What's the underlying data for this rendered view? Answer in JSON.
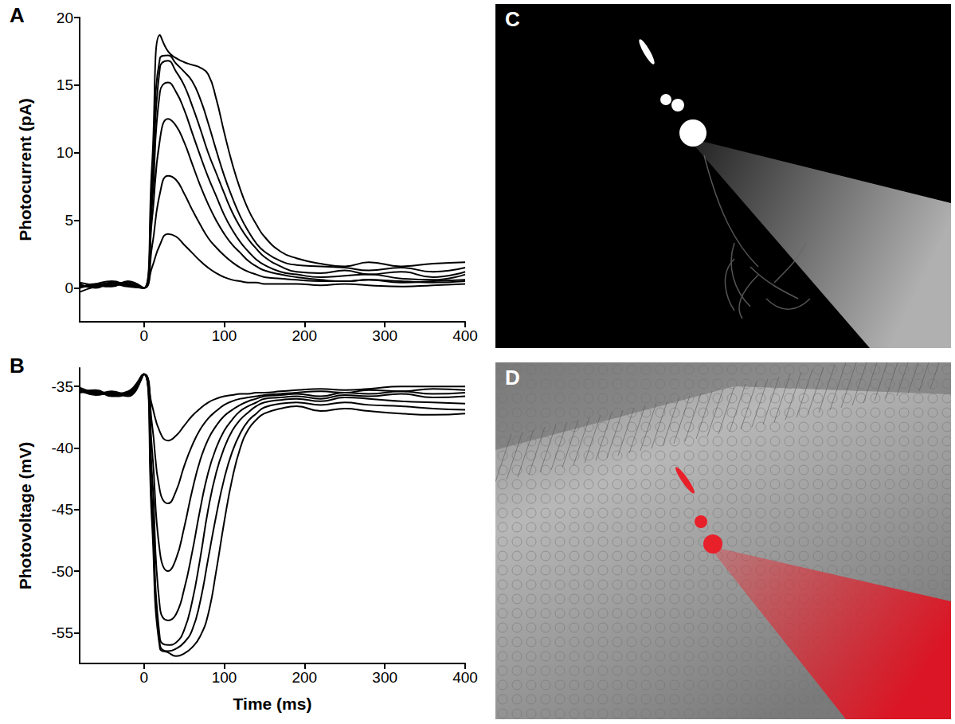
{
  "chart_data": [
    {
      "panel": "A",
      "type": "line",
      "ylabel": "Photocurrent (pA)",
      "color": "#000000",
      "marker": "none",
      "line_style": "solid",
      "grid": false,
      "xlim": [
        -80,
        400
      ],
      "xticks": [
        0,
        100,
        200,
        300,
        400
      ],
      "ylim": [
        -2.5,
        20
      ],
      "yticks": [
        0,
        5,
        10,
        15,
        20
      ],
      "x": [
        -80,
        -60,
        -40,
        -20,
        0,
        10,
        20,
        30,
        40,
        50,
        60,
        70,
        80,
        90,
        100,
        110,
        120,
        130,
        140,
        150,
        170,
        190,
        220,
        250,
        280,
        320,
        360,
        400
      ],
      "series": [
        {
          "values": [
            0,
            0.3,
            0.2,
            0.3,
            0,
            1.5,
            3.2,
            4,
            3.8,
            3.2,
            2.6,
            2,
            1.5,
            1.1,
            0.8,
            0.6,
            0.5,
            0.4,
            0.4,
            0.3,
            0.3,
            0.3,
            0.2,
            0.3,
            0.2,
            0.1,
            0.2,
            0.3
          ]
        },
        {
          "values": [
            0.1,
            0.2,
            0.4,
            0.2,
            0,
            3,
            7,
            8.3,
            8,
            7,
            5.8,
            4.7,
            3.7,
            3,
            2.4,
            1.9,
            1.5,
            1.2,
            1,
            0.8,
            0.7,
            0.6,
            0.5,
            0.5,
            0.6,
            0.4,
            0.5,
            0.6
          ]
        },
        {
          "values": [
            0.2,
            0.1,
            0.3,
            0.4,
            0,
            5,
            11,
            12.5,
            12,
            10.8,
            9.2,
            7.6,
            6.2,
            5,
            4,
            3.2,
            2.6,
            2,
            1.6,
            1.3,
            1,
            0.8,
            0.6,
            0.5,
            0.6,
            0.5,
            0.4,
            0.5
          ]
        },
        {
          "values": [
            0,
            0.3,
            0.5,
            0.2,
            0,
            6,
            14.5,
            15.2,
            14.5,
            13.2,
            11.5,
            9.8,
            8.2,
            6.8,
            5.4,
            4.3,
            3.4,
            2.7,
            2.1,
            1.7,
            1.2,
            1,
            0.8,
            0.9,
            1,
            0.7,
            0.6,
            1
          ]
        },
        {
          "values": [
            0.3,
            0,
            0.4,
            0.3,
            0,
            7,
            16.3,
            16.8,
            16,
            15,
            13.5,
            11.8,
            10,
            8.5,
            7,
            5.6,
            4.5,
            3.6,
            2.9,
            2.3,
            1.6,
            1.2,
            1.1,
            1.3,
            1,
            1.2,
            0.8,
            1.2
          ]
        },
        {
          "values": [
            0.4,
            0.2,
            0.1,
            0.5,
            0,
            7.5,
            17,
            17.2,
            16.6,
            16,
            15.3,
            14,
            12.2,
            10.2,
            8.3,
            6.7,
            5.3,
            4.2,
            3.3,
            2.7,
            2,
            1.7,
            1.6,
            1.5,
            1.3,
            1.5,
            1.2,
            1.5
          ]
        },
        {
          "values": [
            -0.3,
            0.1,
            0.3,
            0.1,
            0,
            9,
            18.7,
            17.5,
            17,
            16.7,
            16.5,
            16.3,
            15.8,
            14,
            11.5,
            9.2,
            7.3,
            5.8,
            4.7,
            3.8,
            2.7,
            2.2,
            1.8,
            1.6,
            1.9,
            1.6,
            1.8,
            1.9
          ]
        }
      ]
    },
    {
      "panel": "B",
      "type": "line",
      "xlabel": "Time (ms)",
      "ylabel": "Photovoltage (mV)",
      "color": "#000000",
      "marker": "none",
      "line_style": "solid",
      "grid": false,
      "xlim": [
        -80,
        400
      ],
      "xticks": [
        0,
        100,
        200,
        300,
        400
      ],
      "ylim": [
        -57.5,
        -33.5
      ],
      "yticks": [
        -55,
        -50,
        -45,
        -40,
        -35
      ],
      "x": [
        -80,
        -60,
        -40,
        -20,
        0,
        10,
        20,
        30,
        40,
        50,
        60,
        70,
        80,
        90,
        100,
        110,
        120,
        130,
        140,
        150,
        170,
        190,
        220,
        250,
        280,
        320,
        360,
        400
      ],
      "series": [
        {
          "values": [
            -35.3,
            -35.6,
            -35.4,
            -35.7,
            -34,
            -36.5,
            -38.7,
            -39.4,
            -39,
            -38.2,
            -37.4,
            -36.8,
            -36.3,
            -36,
            -35.8,
            -35.7,
            -35.6,
            -35.6,
            -35.5,
            -35.5,
            -35.4,
            -35.3,
            -35.2,
            -35.3,
            -35.2,
            -35,
            -35,
            -35
          ]
        },
        {
          "values": [
            -35.1,
            -35.5,
            -35.6,
            -35.4,
            -34,
            -38,
            -43.5,
            -44.5,
            -43.5,
            -41.5,
            -39.8,
            -38.5,
            -37.6,
            -37,
            -36.5,
            -36.2,
            -36,
            -35.9,
            -35.8,
            -35.7,
            -35.6,
            -35.5,
            -35.4,
            -35.5,
            -35.3,
            -35.4,
            -35.2,
            -35.3
          ]
        },
        {
          "values": [
            -35.4,
            -35.3,
            -35.7,
            -35.5,
            -34,
            -40,
            -48.5,
            -50,
            -49,
            -46.5,
            -43.5,
            -41,
            -39.3,
            -38.2,
            -37.4,
            -36.9,
            -36.5,
            -36.2,
            -36,
            -35.8,
            -35.7,
            -35.6,
            -35.8,
            -35.5,
            -35.6,
            -35.4,
            -35.6,
            -35.5
          ]
        },
        {
          "values": [
            -35.2,
            -35.6,
            -35.5,
            -35.8,
            -34,
            -42,
            -53,
            -54,
            -53.5,
            -51.5,
            -48.5,
            -45,
            -42,
            -40,
            -38.6,
            -37.7,
            -37,
            -36.6,
            -36.3,
            -36,
            -35.9,
            -35.8,
            -36,
            -35.7,
            -35.8,
            -35.6,
            -35.9,
            -35.8
          ]
        },
        {
          "values": [
            -35.5,
            -35.4,
            -35.8,
            -35.6,
            -34,
            -44,
            -55.5,
            -56,
            -55.8,
            -54.8,
            -52.5,
            -49,
            -45,
            -42,
            -40,
            -38.6,
            -37.7,
            -37.1,
            -36.6,
            -36.3,
            -36.1,
            -36,
            -36.2,
            -35.9,
            -36,
            -36.2,
            -36.3,
            -36.4
          ]
        },
        {
          "values": [
            -35.3,
            -35.7,
            -35.5,
            -35.6,
            -34,
            -45,
            -56,
            -56.5,
            -56.3,
            -55.8,
            -54.8,
            -52.5,
            -49,
            -45.5,
            -42.5,
            -40.3,
            -38.8,
            -37.8,
            -37.2,
            -36.7,
            -36.4,
            -36.3,
            -36.5,
            -36.3,
            -36.5,
            -36.6,
            -36.8,
            -36.9
          ]
        },
        {
          "values": [
            -35.4,
            -35.5,
            -35.7,
            -35.5,
            -34,
            -46,
            -56.3,
            -56.6,
            -56.9,
            -56.7,
            -56.2,
            -55.3,
            -53.5,
            -50,
            -46,
            -42.5,
            -40,
            -38.5,
            -37.7,
            -37.2,
            -36.8,
            -36.6,
            -37,
            -36.8,
            -37,
            -37.2,
            -37.3,
            -37.2
          ]
        }
      ]
    }
  ],
  "images": [
    {
      "panel": "C",
      "type": "fluorescence micrograph"
    },
    {
      "panel": "D",
      "type": "overlay micrograph"
    }
  ]
}
